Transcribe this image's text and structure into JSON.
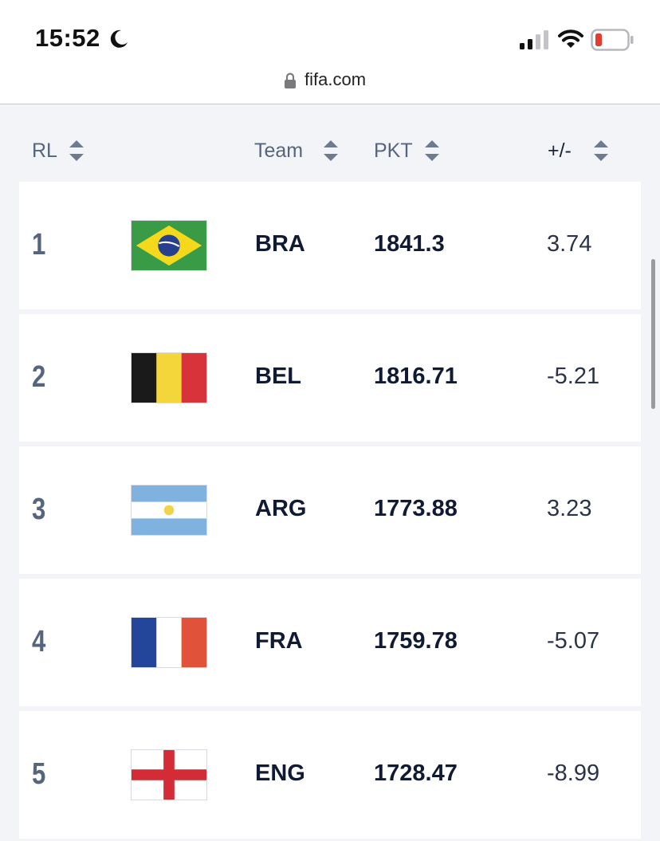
{
  "status_bar": {
    "time": "15:52",
    "icons": [
      "moon-icon",
      "signal-icon",
      "wifi-icon",
      "battery-icon"
    ],
    "battery_color": "#e53b30"
  },
  "browser": {
    "url": "fifa.com",
    "icon": "lock-icon"
  },
  "table": {
    "headers": {
      "rank": "RL",
      "team": "Team",
      "points": "PKT",
      "change": "+/-"
    },
    "sort_icon": "sort-arrows-icon",
    "rows": [
      {
        "rank": "1",
        "team": "BRA",
        "points": "1841.3",
        "change": "3.74",
        "flag": "brazil-flag-icon"
      },
      {
        "rank": "2",
        "team": "BEL",
        "points": "1816.71",
        "change": "-5.21",
        "flag": "belgium-flag-icon"
      },
      {
        "rank": "3",
        "team": "ARG",
        "points": "1773.88",
        "change": "3.23",
        "flag": "argentina-flag-icon"
      },
      {
        "rank": "4",
        "team": "FRA",
        "points": "1759.78",
        "change": "-5.07",
        "flag": "france-flag-icon"
      },
      {
        "rank": "5",
        "team": "ENG",
        "points": "1728.47",
        "change": "-8.99",
        "flag": "england-flag-icon"
      }
    ]
  },
  "colors": {
    "header_text": "#55657e",
    "value_text": "#101b33",
    "background": "#f3f4f8"
  }
}
